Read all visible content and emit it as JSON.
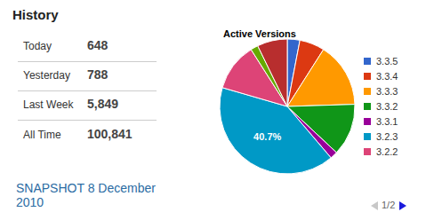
{
  "chart_data": {
    "type": "pie",
    "title": "Active Versions",
    "categories": [
      "3.3.5",
      "3.3.4",
      "3.3.3",
      "3.3.2",
      "3.3.1",
      "3.2.3",
      "3.2.2",
      null,
      null
    ],
    "values": [
      3,
      6,
      15.5,
      12.5,
      1.8,
      40.7,
      11.5,
      1.8,
      7.2
    ],
    "value_labels": [
      null,
      null,
      null,
      null,
      null,
      "40.7%",
      null,
      null,
      null
    ],
    "colors": [
      "#3366cc",
      "#dc3912",
      "#ff9900",
      "#109618",
      "#990099",
      "#0099c6",
      "#dd4477",
      "#66aa00",
      "#b82e2e"
    ],
    "legend": "right"
  },
  "history": {
    "title": "History",
    "rows": [
      [
        "Today",
        "648"
      ],
      [
        "Yesterday",
        "788"
      ],
      [
        "Last Week",
        "5,849"
      ],
      [
        "All Time",
        "100,841"
      ]
    ]
  },
  "snapshot": "SNAPSHOT 8 December 2010",
  "legend_pager": "1/2"
}
